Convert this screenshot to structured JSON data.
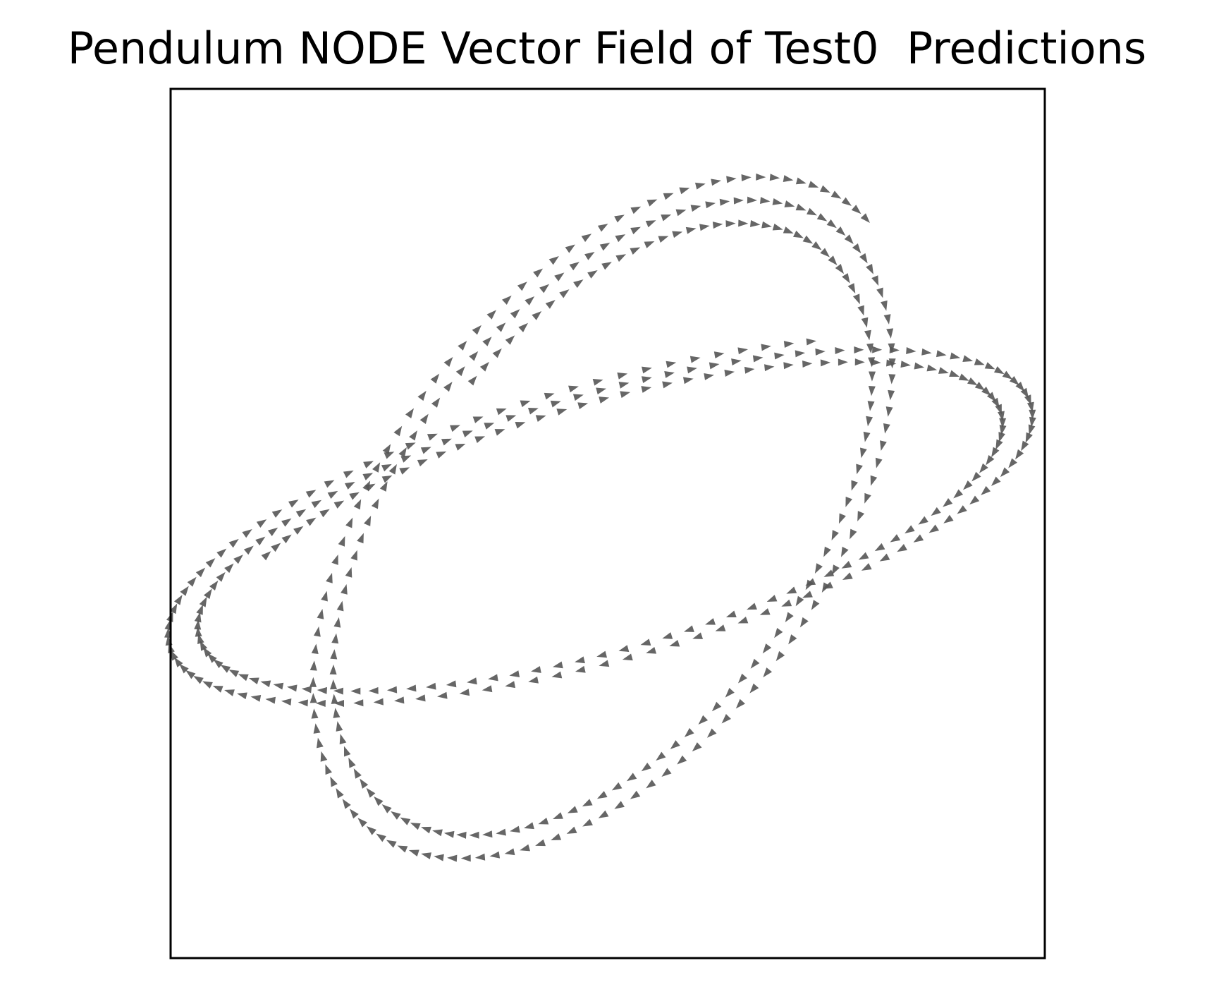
{
  "chart_data": {
    "type": "quiver",
    "title": "Pendulum NODE Vector Field of Test0  Predictions",
    "xlabel": "",
    "ylabel": "",
    "axes_ticks_visible": false,
    "grid": false,
    "legend": "none",
    "arrow_color": "#555555",
    "frame_color": "#000000",
    "background": "#ffffff",
    "xlim": [
      -2.1,
      2.1
    ],
    "ylim": [
      -2.1,
      2.1
    ],
    "trajectories": [
      {
        "t0": 1.35,
        "cycles": 2.25,
        "amp_angle": 1.35,
        "amp_rate": 1.9,
        "samples": 260
      },
      {
        "t0": 1.35,
        "cycles": 2.25,
        "amp_angle": 1.9,
        "amp_rate": 1.55,
        "samples": 260
      }
    ]
  }
}
